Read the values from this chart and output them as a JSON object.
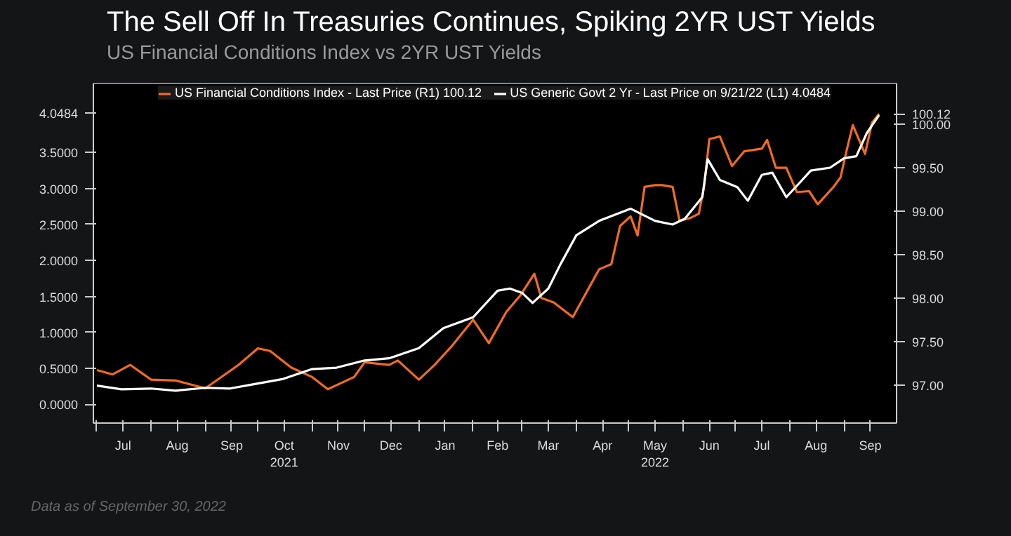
{
  "chart_data": {
    "type": "line",
    "title": "The Sell Off In Treasuries Continues, Spiking 2YR UST Yields",
    "subtitle": "US Financial Conditions Index vs 2YR UST Yields",
    "series": [
      {
        "name": "US Financial Conditions Index - Last Price (R1) 100.12",
        "color": "#f26b1d",
        "axis": "y2",
        "x": [
          "2021-07-01",
          "2021-07-10",
          "2021-07-20",
          "2021-08-01",
          "2021-08-15",
          "2021-09-01",
          "2021-09-20",
          "2021-10-01",
          "2021-10-08",
          "2021-10-20",
          "2021-11-01",
          "2021-11-10",
          "2021-11-25",
          "2021-12-01",
          "2021-12-15",
          "2021-12-20",
          "2022-01-01",
          "2022-01-10",
          "2022-01-20",
          "2022-02-01",
          "2022-02-10",
          "2022-02-20",
          "2022-02-28",
          "2022-03-08",
          "2022-03-12",
          "2022-03-19",
          "2022-03-30",
          "2022-04-08",
          "2022-04-14",
          "2022-04-21",
          "2022-04-26",
          "2022-05-02",
          "2022-05-06",
          "2022-05-10",
          "2022-05-16",
          "2022-05-20",
          "2022-05-26",
          "2022-05-30",
          "2022-06-05",
          "2022-06-10",
          "2022-06-13",
          "2022-06-16",
          "2022-06-22",
          "2022-06-29",
          "2022-07-06",
          "2022-07-16",
          "2022-07-19",
          "2022-07-24",
          "2022-07-30",
          "2022-08-05",
          "2022-08-12",
          "2022-08-17",
          "2022-08-26",
          "2022-08-30",
          "2022-09-02",
          "2022-09-06",
          "2022-09-13",
          "2022-09-17",
          "2022-09-21"
        ],
        "values": [
          97.17,
          97.12,
          97.23,
          97.06,
          97.05,
          96.96,
          97.23,
          97.42,
          97.39,
          97.2,
          97.09,
          96.95,
          97.09,
          97.26,
          97.23,
          97.28,
          97.06,
          97.23,
          97.45,
          97.75,
          97.48,
          97.84,
          98.03,
          98.28,
          98.0,
          97.95,
          97.78,
          98.11,
          98.33,
          98.39,
          98.83,
          98.94,
          98.72,
          99.28,
          99.3,
          99.3,
          99.28,
          98.89,
          98.92,
          98.97,
          99.28,
          99.83,
          99.86,
          99.52,
          99.69,
          99.72,
          99.82,
          99.5,
          99.5,
          99.22,
          99.23,
          99.08,
          99.28,
          99.39,
          99.66,
          99.99,
          99.66,
          100.02,
          100.12
        ]
      },
      {
        "name": "US Generic Govt 2 Yr - Last Price on 9/21/22 (L1) 4.0484",
        "color": "#ffffff",
        "x": [
          "2021-07-01",
          "2021-07-15",
          "2021-08-01",
          "2021-08-15",
          "2021-09-01",
          "2021-09-15",
          "2021-10-01",
          "2021-10-15",
          "2021-11-01",
          "2021-11-15",
          "2021-12-01",
          "2021-12-15",
          "2022-01-01",
          "2022-01-15",
          "2022-02-01",
          "2022-02-15",
          "2022-02-22",
          "2022-03-01",
          "2022-03-07",
          "2022-03-16",
          "2022-03-23",
          "2022-04-01",
          "2022-04-14",
          "2022-05-02",
          "2022-05-16",
          "2022-05-26",
          "2022-06-02",
          "2022-06-12",
          "2022-06-15",
          "2022-06-22",
          "2022-07-02",
          "2022-07-08",
          "2022-07-16",
          "2022-07-22",
          "2022-07-30",
          "2022-08-07",
          "2022-08-13",
          "2022-08-24",
          "2022-09-01",
          "2022-09-08",
          "2022-09-14",
          "2022-09-21"
        ],
        "values": [
          0.26,
          0.21,
          0.22,
          0.19,
          0.23,
          0.22,
          0.29,
          0.35,
          0.49,
          0.51,
          0.61,
          0.64,
          0.78,
          1.06,
          1.21,
          1.58,
          1.61,
          1.55,
          1.41,
          1.61,
          1.95,
          2.35,
          2.55,
          2.72,
          2.55,
          2.5,
          2.58,
          2.88,
          3.41,
          3.12,
          3.02,
          2.83,
          3.19,
          3.22,
          2.88,
          3.09,
          3.25,
          3.29,
          3.42,
          3.45,
          3.77,
          4.02
        ]
      }
    ],
    "xlim": [
      "2021-06-29",
      "2022-10-01"
    ],
    "xticks": [
      {
        "value": "2021-07-01",
        "label": null
      },
      {
        "value": "2021-07-16",
        "label": "Jul"
      },
      {
        "value": "2021-08-01",
        "label": null
      },
      {
        "value": "2021-08-16",
        "label": "Aug"
      },
      {
        "value": "2021-09-01",
        "label": null
      },
      {
        "value": "2021-09-16",
        "label": "Sep"
      },
      {
        "value": "2021-10-01",
        "label": null
      },
      {
        "value": "2021-10-16",
        "label": "Oct\n2021"
      },
      {
        "value": "2021-11-01",
        "label": null
      },
      {
        "value": "2021-11-16",
        "label": "Nov"
      },
      {
        "value": "2021-12-01",
        "label": null
      },
      {
        "value": "2021-12-16",
        "label": "Dec"
      },
      {
        "value": "2022-01-01",
        "label": null
      },
      {
        "value": "2022-01-16",
        "label": "Jan"
      },
      {
        "value": "2022-02-01",
        "label": null
      },
      {
        "value": "2022-02-15",
        "label": "Feb"
      },
      {
        "value": "2022-03-01",
        "label": null
      },
      {
        "value": "2022-03-16",
        "label": "Mar"
      },
      {
        "value": "2022-04-01",
        "label": null
      },
      {
        "value": "2022-04-16",
        "label": "Apr"
      },
      {
        "value": "2022-05-01",
        "label": null
      },
      {
        "value": "2022-05-16",
        "label": "May\n2022"
      },
      {
        "value": "2022-06-01",
        "label": null
      },
      {
        "value": "2022-06-16",
        "label": "Jun"
      },
      {
        "value": "2022-07-01",
        "label": null
      },
      {
        "value": "2022-07-16",
        "label": "Jul"
      },
      {
        "value": "2022-08-01",
        "label": null
      },
      {
        "value": "2022-08-16",
        "label": "Aug"
      },
      {
        "value": "2022-09-01",
        "label": null
      },
      {
        "value": "2022-09-16",
        "label": "Sep"
      }
    ],
    "ylim": [
      -0.26,
      4.46
    ],
    "yticks": [
      {
        "value": 0,
        "label": "0.0000"
      },
      {
        "value": 0.5,
        "label": "0.5000"
      },
      {
        "value": 1,
        "label": "1.0000"
      },
      {
        "value": 1.5,
        "label": "1.5000"
      },
      {
        "value": 2,
        "label": "2.0000"
      },
      {
        "value": 2.5,
        "label": "2.5000"
      },
      {
        "value": 3,
        "label": "3.0000"
      },
      {
        "value": 3.5,
        "label": "3.5000"
      },
      {
        "value": 4.0484,
        "label": "4.0484"
      }
    ],
    "y2lim": [
      96.56,
      100.47
    ],
    "y2ticks": [
      {
        "value": 97,
        "label": "97.00"
      },
      {
        "value": 97.5,
        "label": "97.50"
      },
      {
        "value": 98,
        "label": "98.00"
      },
      {
        "value": 98.5,
        "label": "98.50"
      },
      {
        "value": 99,
        "label": "99.00"
      },
      {
        "value": 99.5,
        "label": "99.50"
      },
      {
        "value": 100,
        "label": "100.00"
      },
      {
        "value": 100.12,
        "label": "100.12"
      }
    ],
    "legend": "top",
    "annotations": [
      "Data as of September 30, 2022"
    ]
  }
}
